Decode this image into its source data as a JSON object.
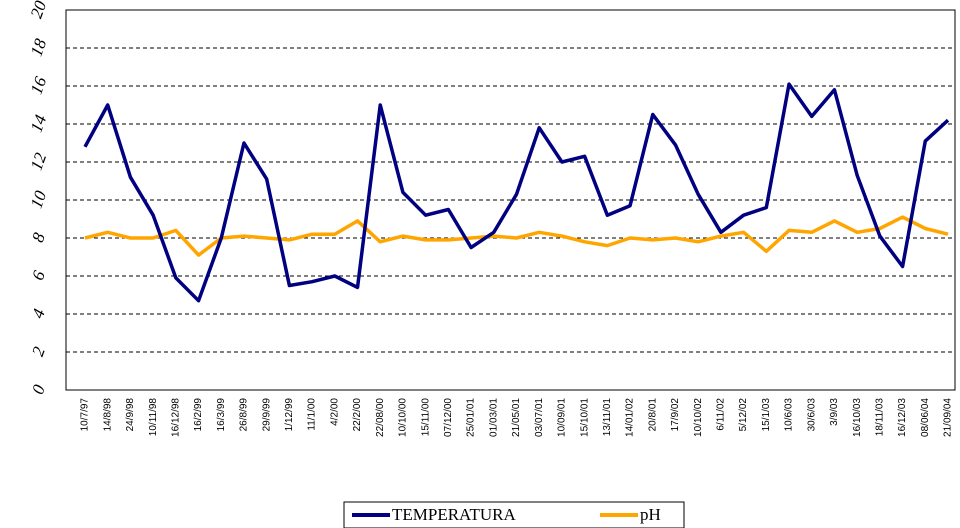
{
  "chart_data": {
    "type": "line",
    "categories": [
      "10/7/97",
      "14/8/98",
      "24/9/98",
      "10/11/98",
      "16/12/98",
      "16/2/99",
      "16/3/99",
      "26/8/99",
      "29/9/99",
      "1/12/99",
      "11/1/00",
      "4/2/00",
      "22/2/00",
      "22/08/00",
      "10/10/00",
      "15/11/00",
      "07/12/00",
      "25/01/01",
      "01/03/01",
      "21/05/01",
      "03/07/01",
      "10/09/01",
      "15/10/01",
      "13/11/01",
      "14/01/02",
      "20/8/01",
      "17/9/02",
      "10/10/02",
      "6/11/02",
      "5/12/02",
      "15/1/03",
      "10/6/03",
      "30/6/03",
      "3/9/03",
      "16/10/03",
      "18/11/03",
      "16/12/03",
      "08/06/04",
      "21/09/04"
    ],
    "series": [
      {
        "name": "TEMPERATURA",
        "color": "#000080",
        "values": [
          12.8,
          15.0,
          11.2,
          9.2,
          5.9,
          4.7,
          8.0,
          13.0,
          11.1,
          5.5,
          5.7,
          6.0,
          5.4,
          15.0,
          10.4,
          9.2,
          9.5,
          7.5,
          8.3,
          10.3,
          13.8,
          12.0,
          12.3,
          9.2,
          9.7,
          14.5,
          12.9,
          10.3,
          8.3,
          9.2,
          9.6,
          16.1,
          14.4,
          15.8,
          11.3,
          8.1,
          6.5,
          13.1,
          14.2
        ]
      },
      {
        "name": "pH",
        "color": "#ffa500",
        "values": [
          8.0,
          8.3,
          8.0,
          8.0,
          8.4,
          7.1,
          8.0,
          8.1,
          8.0,
          7.9,
          8.2,
          8.2,
          8.9,
          7.8,
          8.1,
          7.9,
          7.9,
          8.0,
          8.1,
          8.0,
          8.3,
          8.1,
          7.8,
          7.6,
          8.0,
          7.9,
          8.0,
          7.8,
          8.1,
          8.3,
          7.3,
          8.4,
          8.3,
          8.9,
          8.3,
          8.5,
          9.1,
          8.5,
          8.2
        ]
      }
    ],
    "ylim": [
      0,
      20
    ],
    "yticks": [
      0,
      2,
      4,
      6,
      8,
      10,
      12,
      14,
      16,
      18,
      20
    ],
    "grid": true,
    "legend": "bottom"
  }
}
